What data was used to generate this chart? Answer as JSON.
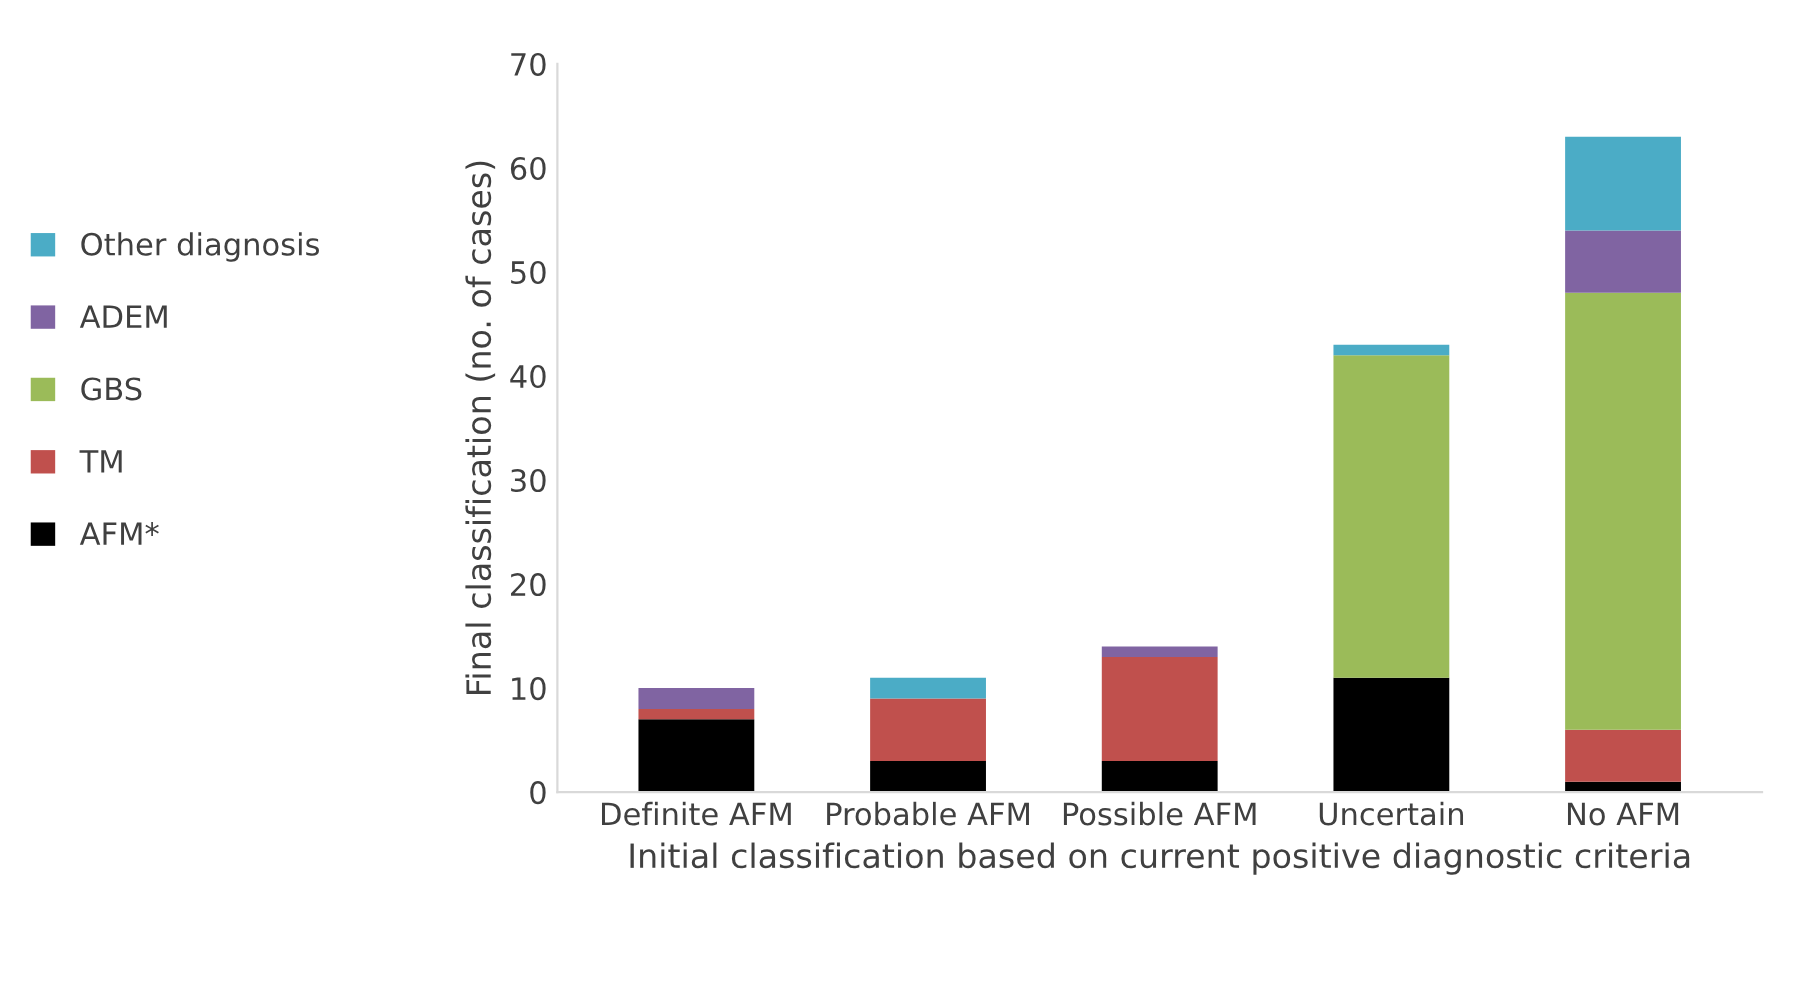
{
  "chart_data": {
    "type": "bar",
    "stacked": true,
    "xlabel": "Initial classification based on current positive diagnostic criteria",
    "ylabel": "Final classification (no. of cases)",
    "categories": [
      "Definite AFM",
      "Probable AFM",
      "Possible AFM",
      "Uncertain",
      "No AFM"
    ],
    "series": [
      {
        "name": "AFM*",
        "color": "#000000",
        "values": [
          7,
          3,
          3,
          11,
          1
        ]
      },
      {
        "name": "TM",
        "color": "#c0504d",
        "values": [
          1,
          6,
          10,
          0,
          5
        ]
      },
      {
        "name": "GBS",
        "color": "#9bbb59",
        "values": [
          0,
          0,
          0,
          31,
          42
        ]
      },
      {
        "name": "ADEM",
        "color": "#8064a2",
        "values": [
          2,
          0,
          1,
          0,
          6
        ]
      },
      {
        "name": "Other diagnosis",
        "color": "#4bacc6",
        "values": [
          0,
          2,
          0,
          1,
          9
        ]
      }
    ],
    "ylim": [
      0,
      70
    ],
    "yticks": [
      0,
      10,
      20,
      30,
      40,
      50,
      60,
      70
    ],
    "grid": false,
    "legend": "left"
  }
}
